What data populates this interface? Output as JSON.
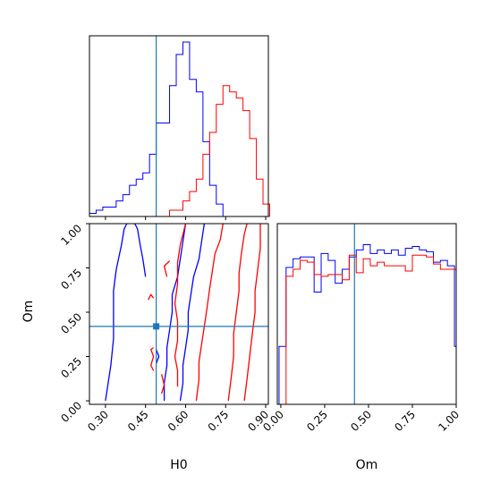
{
  "chart_data": {
    "type": "corner",
    "colors": {
      "run_a": "#0000ff",
      "run_b": "#ff0000",
      "truth": "#1f77b4"
    },
    "truth": {
      "H0": 0.49,
      "Om": 0.42
    },
    "h0_marginal": {
      "type": "histogram",
      "xlim": [
        0.24,
        0.91
      ],
      "bin_width": 0.025,
      "bin_edges_start": 0.24,
      "series": [
        {
          "color": "#0000ff",
          "values": [
            1,
            2,
            3,
            3,
            5,
            7,
            10,
            12,
            14,
            20,
            30,
            30,
            42,
            52,
            56,
            44,
            40,
            24,
            10,
            4,
            0,
            0,
            0,
            0,
            0,
            0,
            0
          ]
        },
        {
          "color": "#ff0000",
          "values": [
            0,
            0,
            0,
            0,
            0,
            0,
            0,
            0,
            0,
            0,
            0,
            0,
            2,
            2,
            5,
            8,
            12,
            20,
            27,
            36,
            42,
            40,
            38,
            34,
            25,
            12,
            4
          ]
        }
      ]
    },
    "om_marginal": {
      "type": "histogram",
      "xlim": [
        -0.02,
        1.0
      ],
      "bin_width": 0.04,
      "bin_edges_start": -0.01,
      "series": [
        {
          "color": "#0000ff",
          "values": [
            0.33,
            0.78,
            0.83,
            0.84,
            0.84,
            0.64,
            0.86,
            0.82,
            0.69,
            0.77,
            0.84,
            0.88,
            0.91,
            0.86,
            0.88,
            0.86,
            0.88,
            0.85,
            0.89,
            0.9,
            0.88,
            0.87,
            0.81,
            0.82,
            0.79,
            0.33
          ]
        },
        {
          "color": "#ff0000",
          "values": [
            0.0,
            0.73,
            0.77,
            0.82,
            0.81,
            0.74,
            0.73,
            0.74,
            0.74,
            0.71,
            0.85,
            0.75,
            0.83,
            0.79,
            0.81,
            0.79,
            0.79,
            0.79,
            0.76,
            0.85,
            0.85,
            0.84,
            0.8,
            0.77,
            0.77,
            0.77
          ]
        }
      ]
    },
    "joint": {
      "type": "contour",
      "xlabel": "H0",
      "ylabel": "Om",
      "xlim": [
        0.24,
        0.91
      ],
      "ylim": [
        -0.02,
        1.0
      ],
      "xticks": [
        "0.30",
        "0.45",
        "0.60",
        "0.75",
        "0.90"
      ],
      "yticks": [
        "0.00",
        "0.25",
        "0.50",
        "0.75",
        "1.00"
      ],
      "contours": [
        {
          "color": "#0000ff",
          "points": [
            [
              0.3,
              0.0
            ],
            [
              0.31,
              0.1
            ],
            [
              0.32,
              0.2
            ],
            [
              0.33,
              0.35
            ],
            [
              0.33,
              0.5
            ],
            [
              0.33,
              0.62
            ],
            [
              0.34,
              0.74
            ],
            [
              0.36,
              0.88
            ],
            [
              0.37,
              0.97
            ],
            [
              0.38,
              1.0
            ]
          ]
        },
        {
          "color": "#0000ff",
          "points": [
            [
              0.41,
              1.0
            ],
            [
              0.42,
              0.97
            ],
            [
              0.43,
              0.88
            ],
            [
              0.44,
              0.8
            ],
            [
              0.45,
              0.7
            ]
          ]
        },
        {
          "color": "#0000ff",
          "points": [
            [
              0.52,
              0.0
            ],
            [
              0.52,
              0.1
            ],
            [
              0.53,
              0.2
            ],
            [
              0.53,
              0.3
            ],
            [
              0.54,
              0.4
            ],
            [
              0.55,
              0.5
            ],
            [
              0.55,
              0.6
            ],
            [
              0.57,
              0.7
            ],
            [
              0.58,
              0.8
            ],
            [
              0.59,
              0.9
            ],
            [
              0.6,
              1.0
            ]
          ]
        },
        {
          "color": "#0000ff",
          "points": [
            [
              0.58,
              0.0
            ],
            [
              0.59,
              0.1
            ],
            [
              0.59,
              0.2
            ],
            [
              0.6,
              0.3
            ],
            [
              0.61,
              0.4
            ],
            [
              0.61,
              0.5
            ],
            [
              0.62,
              0.6
            ],
            [
              0.63,
              0.7
            ],
            [
              0.65,
              0.8
            ],
            [
              0.66,
              0.9
            ],
            [
              0.67,
              1.0
            ]
          ]
        },
        {
          "color": "#0000ff",
          "points": [
            [
              0.49,
              0.21
            ],
            [
              0.5,
              0.25
            ],
            [
              0.49,
              0.29
            ]
          ]
        },
        {
          "color": "#ff0000",
          "points": [
            [
              0.48,
              0.17
            ],
            [
              0.47,
              0.2
            ],
            [
              0.48,
              0.25
            ],
            [
              0.47,
              0.29
            ],
            [
              0.48,
              0.3
            ]
          ]
        },
        {
          "color": "#ff0000",
          "points": [
            [
              0.51,
              0.04
            ],
            [
              0.52,
              0.09
            ],
            [
              0.51,
              0.15
            ]
          ]
        },
        {
          "color": "#ff0000",
          "points": [
            [
              0.57,
              0.08
            ],
            [
              0.57,
              0.17
            ],
            [
              0.56,
              0.25
            ],
            [
              0.57,
              0.34
            ],
            [
              0.57,
              0.45
            ],
            [
              0.56,
              0.55
            ],
            [
              0.57,
              0.66
            ],
            [
              0.57,
              0.78
            ],
            [
              0.58,
              0.88
            ],
            [
              0.59,
              0.94
            ],
            [
              0.6,
              1.0
            ]
          ]
        },
        {
          "color": "#ff0000",
          "points": [
            [
              0.64,
              0.0
            ],
            [
              0.65,
              0.12
            ],
            [
              0.65,
              0.22
            ],
            [
              0.66,
              0.32
            ],
            [
              0.67,
              0.42
            ],
            [
              0.68,
              0.52
            ],
            [
              0.69,
              0.63
            ],
            [
              0.7,
              0.73
            ],
            [
              0.71,
              0.83
            ],
            [
              0.73,
              0.91
            ],
            [
              0.74,
              1.0
            ]
          ]
        },
        {
          "color": "#ff0000",
          "points": [
            [
              0.76,
              0.0
            ],
            [
              0.77,
              0.12
            ],
            [
              0.78,
              0.25
            ],
            [
              0.78,
              0.38
            ],
            [
              0.79,
              0.5
            ],
            [
              0.8,
              0.62
            ],
            [
              0.8,
              0.72
            ],
            [
              0.81,
              0.84
            ],
            [
              0.82,
              0.94
            ],
            [
              0.83,
              1.0
            ]
          ]
        },
        {
          "color": "#ff0000",
          "points": [
            [
              0.82,
              0.0
            ],
            [
              0.83,
              0.12
            ],
            [
              0.84,
              0.25
            ],
            [
              0.85,
              0.38
            ],
            [
              0.86,
              0.5
            ],
            [
              0.86,
              0.62
            ],
            [
              0.87,
              0.74
            ],
            [
              0.88,
              0.86
            ],
            [
              0.88,
              1.0
            ]
          ]
        },
        {
          "color": "#ff0000",
          "points": [
            [
              0.53,
              0.7
            ],
            [
              0.52,
              0.76
            ],
            [
              0.54,
              0.79
            ]
          ]
        },
        {
          "color": "#ff0000",
          "points": [
            [
              0.46,
              0.57
            ],
            [
              0.47,
              0.6
            ],
            [
              0.48,
              0.58
            ]
          ]
        }
      ]
    },
    "om_axis": {
      "xlabel": "Om",
      "xticks": [
        "0.00",
        "0.25",
        "0.50",
        "0.75",
        "1.00"
      ]
    }
  }
}
